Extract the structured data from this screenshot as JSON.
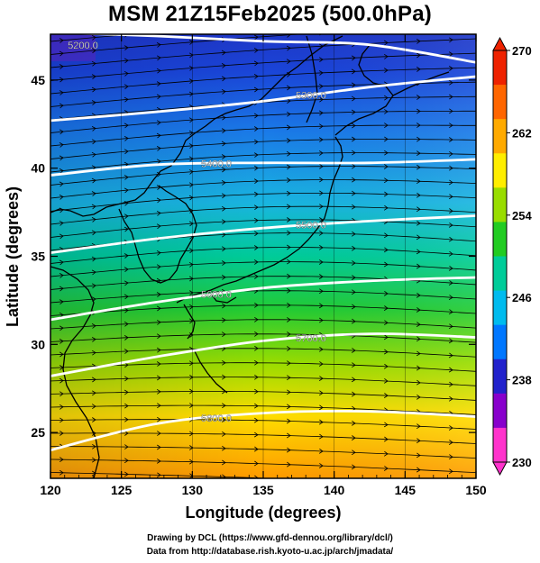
{
  "title": "MSM 21Z15Feb2025 (500.0hPa)",
  "x_axis": {
    "label": "Longitude (degrees)",
    "range": [
      120,
      150
    ],
    "ticks": [
      120,
      125,
      130,
      135,
      140,
      145,
      150
    ]
  },
  "y_axis": {
    "label": "Latitude  (degrees)",
    "range": [
      22.4,
      47.6
    ],
    "ticks": [
      25,
      30,
      35,
      40,
      45
    ]
  },
  "colorbar": {
    "min": 230,
    "max": 270,
    "ticks": [
      230,
      238,
      246,
      254,
      262,
      270
    ],
    "colors": [
      "#ff33cc",
      "#8800cc",
      "#2222cc",
      "#0077ff",
      "#00bbee",
      "#00cc99",
      "#22cc22",
      "#99dd00",
      "#ffee00",
      "#ffaa00",
      "#ff6600",
      "#ee2200"
    ]
  },
  "contours": [
    {
      "label": "5200.0",
      "lats": [
        47.7,
        47.5,
        47.2,
        47.0,
        46.0
      ]
    },
    {
      "label": "5300.0",
      "lats": [
        42.7,
        43.2,
        43.8,
        44.6,
        45.2
      ]
    },
    {
      "label": "5400.0",
      "lats": [
        39.6,
        40.2,
        40.3,
        40.3,
        40.5
      ]
    },
    {
      "label": "5500.0",
      "lats": [
        35.2,
        36.0,
        36.6,
        37.0,
        37.3
      ]
    },
    {
      "label": "5600.0",
      "lats": [
        31.4,
        32.4,
        33.2,
        33.6,
        33.8
      ]
    },
    {
      "label": "5700.0",
      "lats": [
        28.2,
        29.3,
        30.2,
        30.6,
        30.4
      ]
    },
    {
      "label": "5800.0",
      "lats": [
        24.0,
        25.5,
        26.1,
        26.2,
        25.9
      ]
    }
  ],
  "credits": {
    "line1": "Drawing by DCL (https://www.gfd-dennou.org/library/dcl/)",
    "line2": "Data from http://database.rish.kyoto-u.ac.jp/arch/jmadata/"
  }
}
